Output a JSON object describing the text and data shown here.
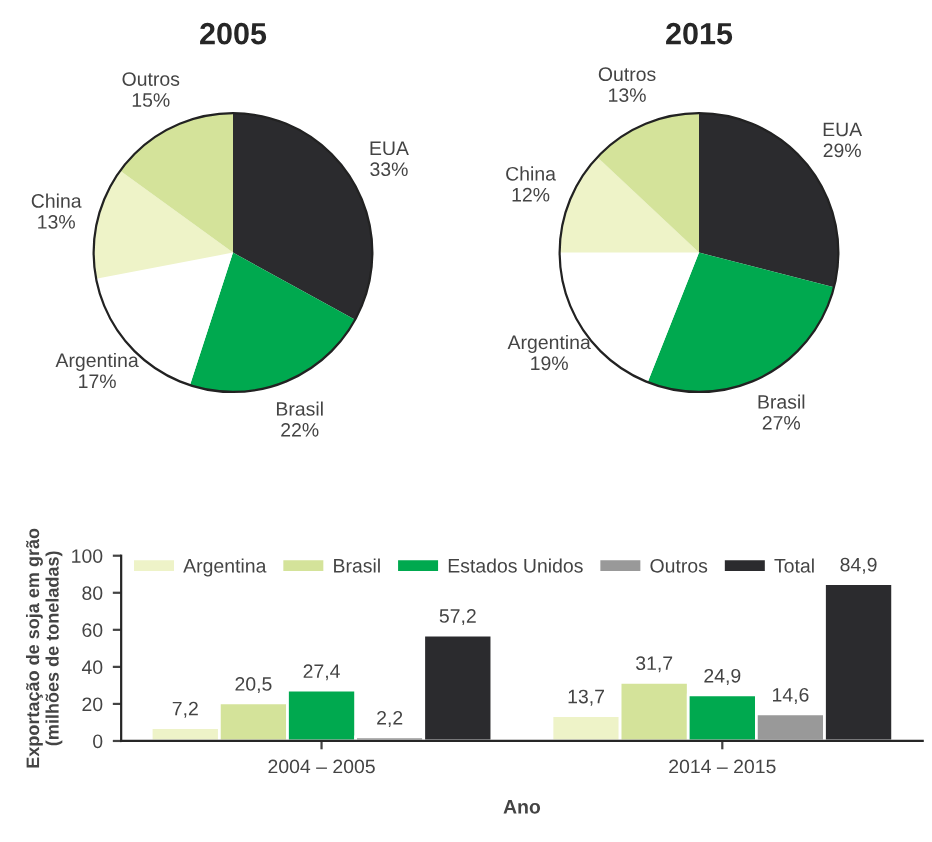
{
  "chart_data": [
    {
      "type": "pie",
      "title": "2005",
      "categories": [
        "EUA",
        "Brasil",
        "Argentina",
        "China",
        "Outros"
      ],
      "values": [
        33,
        22,
        17,
        13,
        15
      ],
      "value_labels": [
        "33%",
        "22%",
        "17%",
        "13%",
        "15%"
      ],
      "colors": [
        "#2b2b2e",
        "#00a94f",
        "#ffffff",
        "#eef3c8",
        "#d4e39a"
      ]
    },
    {
      "type": "pie",
      "title": "2015",
      "categories": [
        "EUA",
        "Brasil",
        "Argentina",
        "China",
        "Outros"
      ],
      "values": [
        29,
        27,
        19,
        12,
        13
      ],
      "value_labels": [
        "29%",
        "27%",
        "19%",
        "12%",
        "13%"
      ],
      "colors": [
        "#2b2b2e",
        "#00a94f",
        "#ffffff",
        "#eef3c8",
        "#d4e39a"
      ]
    },
    {
      "type": "bar",
      "categories": [
        "2004 – 2005",
        "2014 – 2015"
      ],
      "xlabel": "Ano",
      "ylabel": "Exportação de soja em grão\n(milhões de toneladas)",
      "ylim": [
        0,
        100
      ],
      "yticks": [
        0,
        20,
        40,
        60,
        80,
        100
      ],
      "legend": "top",
      "grid": false,
      "series": [
        {
          "name": "Argentina",
          "color": "#eef3c8",
          "values": [
            7.2,
            13.7
          ],
          "value_labels": [
            "7,2",
            "13,7"
          ]
        },
        {
          "name": "Brasil",
          "color": "#d4e39a",
          "values": [
            20.5,
            31.7
          ],
          "value_labels": [
            "20,5",
            "31,7"
          ]
        },
        {
          "name": "Estados Unidos",
          "color": "#00a94f",
          "values": [
            27.4,
            24.9
          ],
          "value_labels": [
            "27,4",
            "24,9"
          ]
        },
        {
          "name": "Outros",
          "color": "#999999",
          "values": [
            2.2,
            14.6
          ],
          "value_labels": [
            "2,2",
            "14,6"
          ]
        },
        {
          "name": "Total",
          "color": "#2b2b2e",
          "values": [
            57.2,
            84.9
          ],
          "value_labels": [
            "57,2",
            "84,9"
          ]
        }
      ]
    }
  ]
}
